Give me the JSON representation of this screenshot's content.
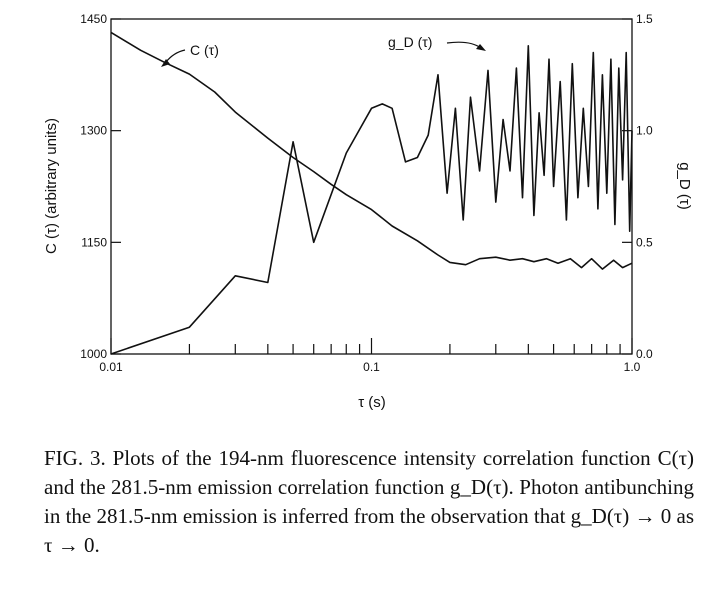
{
  "chart_data": {
    "type": "line",
    "xlabel": "τ (s)",
    "ylabel_left": "C (τ) (arbitrary units)",
    "ylabel_right": "g_D (τ)",
    "x_scale": "log",
    "xlim": [
      0.01,
      1.0
    ],
    "ylim_left": [
      1000,
      1450
    ],
    "ylim_right": [
      0.0,
      1.5
    ],
    "x_tick_labels": [
      "0.01",
      "0.1",
      "1.0"
    ],
    "left_tick_labels": [
      "1000",
      "1150",
      "1300",
      "1450"
    ],
    "right_tick_labels": [
      "0.0",
      "0.5",
      "1.0",
      "1.5"
    ],
    "series": [
      {
        "name": "C (τ)",
        "axis": "left",
        "x": [
          0.01,
          0.013,
          0.016,
          0.02,
          0.025,
          0.03,
          0.04,
          0.05,
          0.06,
          0.07,
          0.08,
          0.1,
          0.12,
          0.15,
          0.18,
          0.2,
          0.23,
          0.26,
          0.3,
          0.34,
          0.38,
          0.42,
          0.47,
          0.52,
          0.58,
          0.64,
          0.7,
          0.77,
          0.85,
          0.92,
          1.0
        ],
        "values": [
          1432,
          1408,
          1392,
          1376,
          1352,
          1325,
          1290,
          1264,
          1245,
          1228,
          1214,
          1194,
          1172,
          1152,
          1133,
          1123,
          1120,
          1128,
          1130,
          1126,
          1128,
          1124,
          1128,
          1122,
          1128,
          1116,
          1128,
          1114,
          1126,
          1116,
          1122
        ]
      },
      {
        "name": "g_D (τ)",
        "axis": "right",
        "x": [
          0.01,
          0.02,
          0.03,
          0.04,
          0.05,
          0.06,
          0.08,
          0.1,
          0.11,
          0.12,
          0.135,
          0.15,
          0.165,
          0.18,
          0.195,
          0.21,
          0.225,
          0.24,
          0.26,
          0.28,
          0.3,
          0.32,
          0.34,
          0.36,
          0.38,
          0.4,
          0.42,
          0.44,
          0.46,
          0.48,
          0.5,
          0.53,
          0.56,
          0.59,
          0.62,
          0.65,
          0.68,
          0.71,
          0.74,
          0.77,
          0.8,
          0.83,
          0.86,
          0.89,
          0.92,
          0.95,
          0.98,
          1.0
        ],
        "values": [
          0.0,
          0.12,
          0.35,
          0.32,
          0.95,
          0.5,
          0.9,
          1.1,
          1.12,
          1.1,
          0.86,
          0.88,
          0.98,
          1.25,
          0.72,
          1.1,
          0.6,
          1.15,
          0.82,
          1.27,
          0.68,
          1.05,
          0.82,
          1.28,
          0.7,
          1.38,
          0.62,
          1.08,
          0.8,
          1.32,
          0.75,
          1.22,
          0.6,
          1.3,
          0.7,
          1.1,
          0.75,
          1.35,
          0.65,
          1.25,
          0.72,
          1.32,
          0.58,
          1.28,
          0.78,
          1.35,
          0.55,
          1.0
        ]
      }
    ],
    "annotations": [
      "C (τ)",
      "g_D (τ)"
    ]
  },
  "caption": {
    "label": "FIG. 3.",
    "text": "Plots of the 194-nm fluorescence intensity correlation function C(τ) and the 281.5-nm emission correlation function g_D(τ). Photon antibunching in the 281.5-nm emission is inferred from the observation that g_D(τ) → 0 as τ → 0."
  }
}
